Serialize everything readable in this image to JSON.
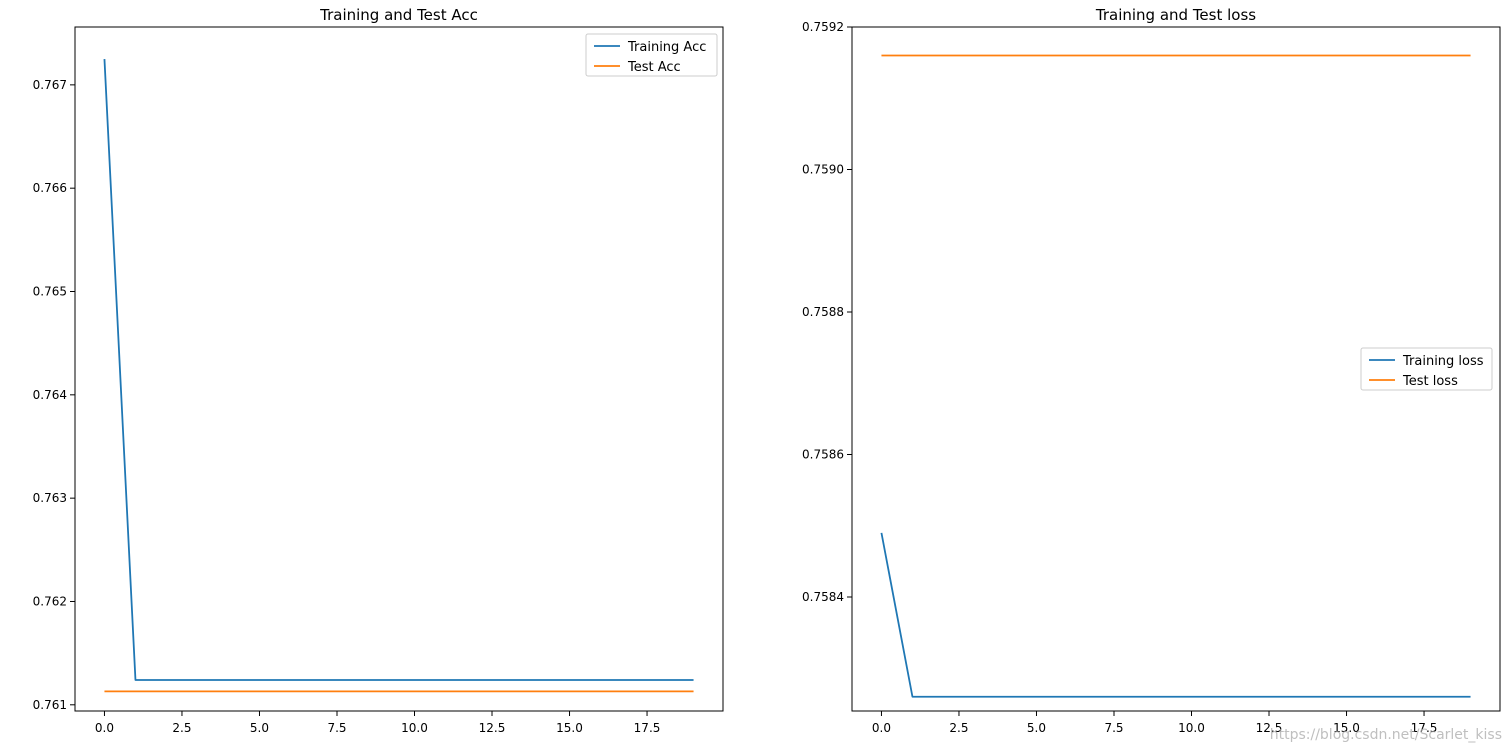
{
  "chart_data": [
    {
      "type": "line",
      "title": "Training and Test Acc",
      "xlabel": "",
      "ylabel": "",
      "xlim": [
        -0.95,
        19.95
      ],
      "ylim": [
        0.76094,
        0.76756
      ],
      "x_ticks": [
        0.0,
        2.5,
        5.0,
        7.5,
        10.0,
        12.5,
        15.0,
        17.5
      ],
      "x_tick_labels": [
        "0.0",
        "2.5",
        "5.0",
        "7.5",
        "10.0",
        "12.5",
        "15.0",
        "17.5"
      ],
      "y_ticks": [
        0.761,
        0.762,
        0.763,
        0.764,
        0.765,
        0.766,
        0.767
      ],
      "y_tick_labels": [
        "0.761",
        "0.762",
        "0.763",
        "0.764",
        "0.765",
        "0.766",
        "0.767"
      ],
      "grid": false,
      "legend_position": "top-right",
      "x": [
        0,
        1,
        2,
        3,
        4,
        5,
        6,
        7,
        8,
        9,
        10,
        11,
        12,
        13,
        14,
        15,
        16,
        17,
        18,
        19
      ],
      "series": [
        {
          "name": "Training Acc",
          "color": "#1f77b4",
          "values": [
            0.76725,
            0.76124,
            0.76124,
            0.76124,
            0.76124,
            0.76124,
            0.76124,
            0.76124,
            0.76124,
            0.76124,
            0.76124,
            0.76124,
            0.76124,
            0.76124,
            0.76124,
            0.76124,
            0.76124,
            0.76124,
            0.76124,
            0.76124
          ]
        },
        {
          "name": "Test Acc",
          "color": "#ff7f0e",
          "values": [
            0.76113,
            0.76113,
            0.76113,
            0.76113,
            0.76113,
            0.76113,
            0.76113,
            0.76113,
            0.76113,
            0.76113,
            0.76113,
            0.76113,
            0.76113,
            0.76113,
            0.76113,
            0.76113,
            0.76113,
            0.76113,
            0.76113,
            0.76113
          ]
        }
      ]
    },
    {
      "type": "line",
      "title": "Training and Test loss",
      "xlabel": "",
      "ylabel": "",
      "xlim": [
        -0.95,
        19.95
      ],
      "ylim": [
        0.75824,
        0.7592
      ],
      "x_ticks": [
        0.0,
        2.5,
        5.0,
        7.5,
        10.0,
        12.5,
        15.0,
        17.5
      ],
      "x_tick_labels": [
        "0.0",
        "2.5",
        "5.0",
        "7.5",
        "10.0",
        "12.5",
        "15.0",
        "17.5"
      ],
      "y_ticks": [
        0.7584,
        0.7586,
        0.7588,
        0.759,
        0.7592
      ],
      "y_tick_labels": [
        "0.7584",
        "0.7586",
        "0.7588",
        "0.7590",
        "0.7592"
      ],
      "grid": false,
      "legend_position": "center-right",
      "x": [
        0,
        1,
        2,
        3,
        4,
        5,
        6,
        7,
        8,
        9,
        10,
        11,
        12,
        13,
        14,
        15,
        16,
        17,
        18,
        19
      ],
      "series": [
        {
          "name": "Training loss",
          "color": "#1f77b4",
          "values": [
            0.75849,
            0.75826,
            0.75826,
            0.75826,
            0.75826,
            0.75826,
            0.75826,
            0.75826,
            0.75826,
            0.75826,
            0.75826,
            0.75826,
            0.75826,
            0.75826,
            0.75826,
            0.75826,
            0.75826,
            0.75826,
            0.75826,
            0.75826
          ]
        },
        {
          "name": "Test loss",
          "color": "#ff7f0e",
          "values": [
            0.75916,
            0.75916,
            0.75916,
            0.75916,
            0.75916,
            0.75916,
            0.75916,
            0.75916,
            0.75916,
            0.75916,
            0.75916,
            0.75916,
            0.75916,
            0.75916,
            0.75916,
            0.75916,
            0.75916,
            0.75916,
            0.75916,
            0.75916
          ]
        }
      ]
    }
  ],
  "watermark": {
    "text": "https://blog.csdn.net/Scarlet_kiss"
  }
}
